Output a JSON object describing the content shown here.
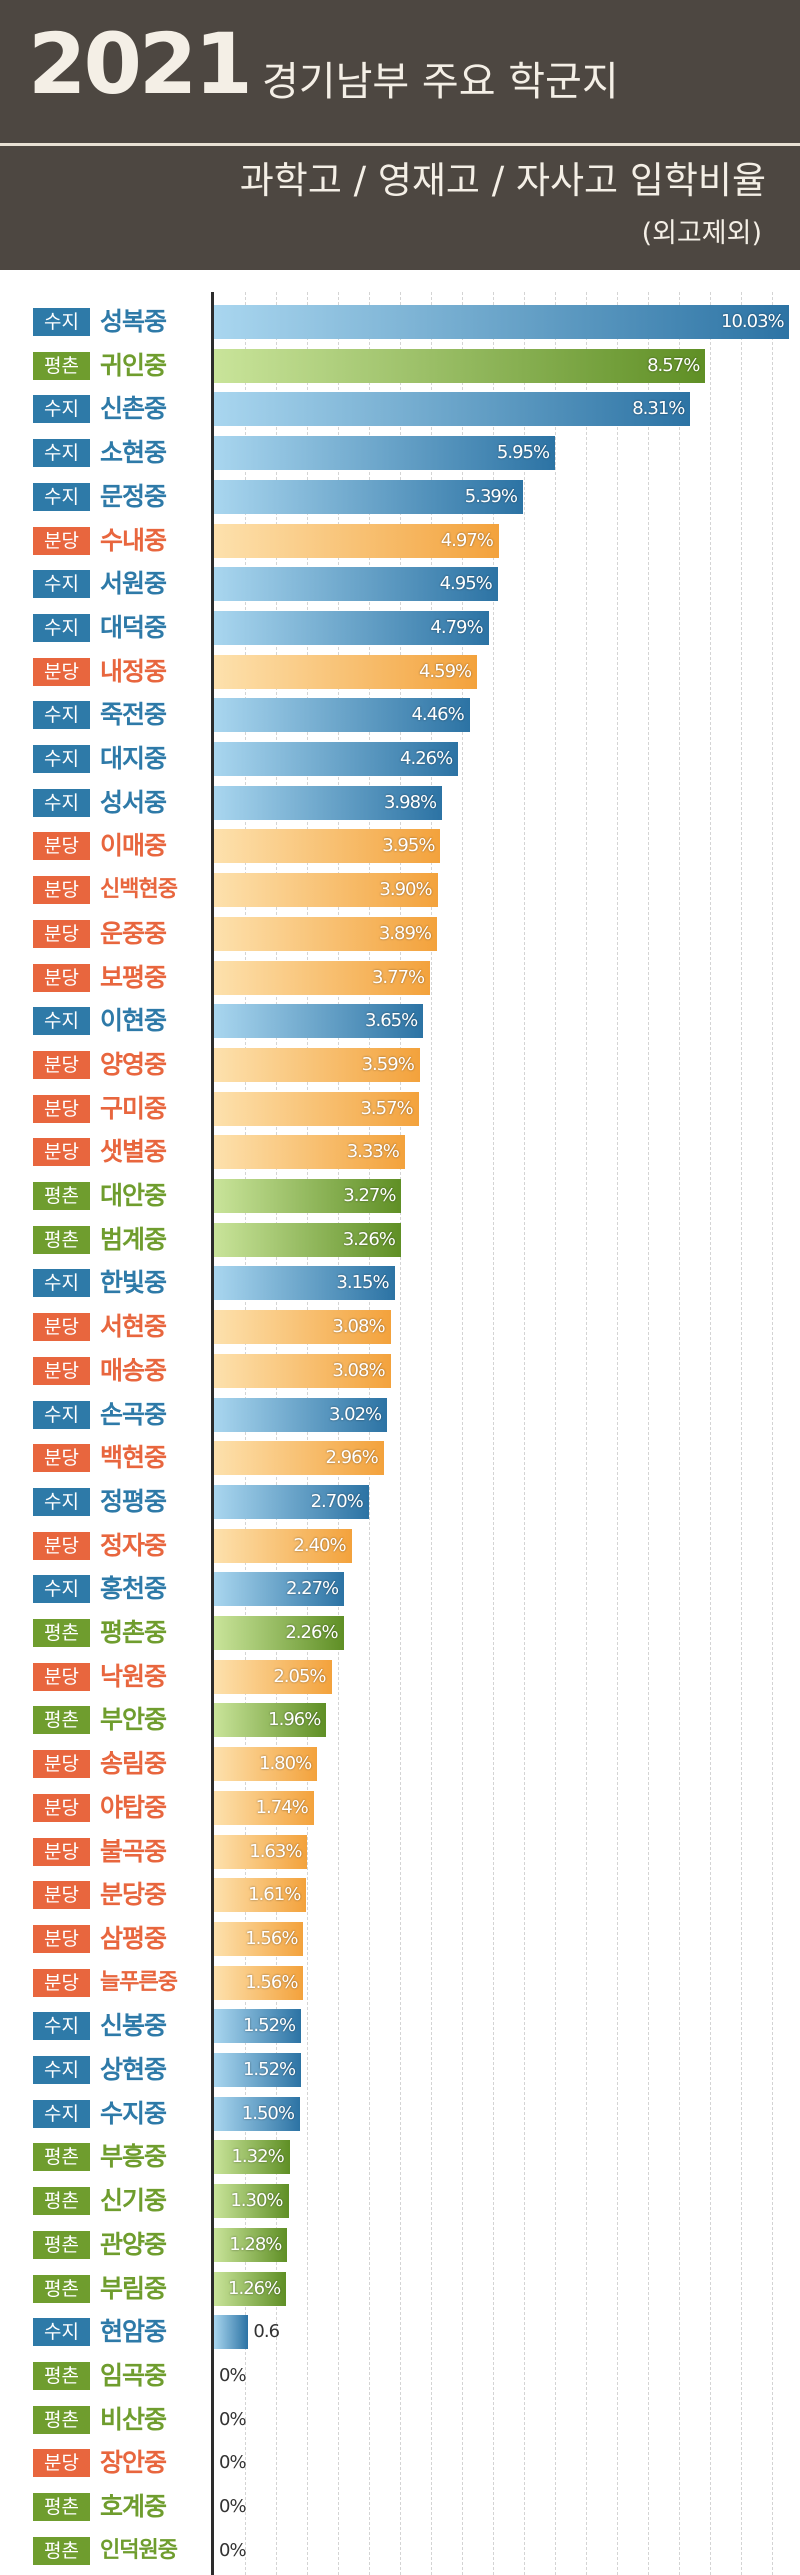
{
  "header": {
    "year": "2021",
    "title": "경기남부 주요 학군지",
    "subtitle": "과학고 / 영재고 / 자사고 입학비율",
    "note": "(외고제외)"
  },
  "colors": {
    "header_bg": "#4d4741",
    "수지": "#2e7aa8",
    "평촌": "#6f9d2e",
    "분당": "#e8663e",
    "bar_수지": [
      "#a9d6ef",
      "#2c73a4"
    ],
    "bar_평촌": [
      "#c9e49a",
      "#5f8f25"
    ],
    "bar_분당": [
      "#fde1ad",
      "#f3a23c"
    ]
  },
  "chart_data": {
    "type": "bar",
    "orientation": "horizontal",
    "grid": true,
    "xlim": [
      0,
      10.03
    ],
    "categories": [
      "성복중",
      "귀인중",
      "신촌중",
      "소현중",
      "문정중",
      "수내중",
      "서원중",
      "대덕중",
      "내정중",
      "죽전중",
      "대지중",
      "성서중",
      "이매중",
      "신백현중",
      "운중중",
      "보평중",
      "이현중",
      "양영중",
      "구미중",
      "샛별중",
      "대안중",
      "범계중",
      "한빛중",
      "서현중",
      "매송중",
      "손곡중",
      "백현중",
      "정평중",
      "정자중",
      "홍천중",
      "평촌중",
      "낙원중",
      "부안중",
      "송림중",
      "야탑중",
      "불곡중",
      "분당중",
      "삼평중",
      "늘푸른중",
      "신봉중",
      "상현중",
      "수지중",
      "부흥중",
      "신기중",
      "관양중",
      "부림중",
      "현암중",
      "임곡중",
      "비산중",
      "장안중",
      "호계중",
      "인덕원중"
    ],
    "regions": [
      "수지",
      "평촌",
      "수지",
      "수지",
      "수지",
      "분당",
      "수지",
      "수지",
      "분당",
      "수지",
      "수지",
      "수지",
      "분당",
      "분당",
      "분당",
      "분당",
      "수지",
      "분당",
      "분당",
      "분당",
      "평촌",
      "평촌",
      "수지",
      "분당",
      "분당",
      "수지",
      "분당",
      "수지",
      "분당",
      "수지",
      "평촌",
      "분당",
      "평촌",
      "분당",
      "분당",
      "분당",
      "분당",
      "분당",
      "분당",
      "수지",
      "수지",
      "수지",
      "평촌",
      "평촌",
      "평촌",
      "평촌",
      "수지",
      "평촌",
      "평촌",
      "분당",
      "평촌",
      "평촌"
    ],
    "values": [
      10.03,
      8.57,
      8.31,
      5.95,
      5.39,
      4.97,
      4.95,
      4.79,
      4.59,
      4.46,
      4.26,
      3.98,
      3.95,
      3.9,
      3.89,
      3.77,
      3.65,
      3.59,
      3.57,
      3.33,
      3.27,
      3.26,
      3.15,
      3.08,
      3.08,
      3.02,
      2.96,
      2.7,
      2.4,
      2.27,
      2.26,
      2.05,
      1.96,
      1.8,
      1.74,
      1.63,
      1.61,
      1.56,
      1.56,
      1.52,
      1.52,
      1.5,
      1.32,
      1.3,
      1.28,
      1.26,
      0.6,
      0,
      0,
      0,
      0,
      0
    ],
    "value_labels": [
      "10.03%",
      "8.57%",
      "8.31%",
      "5.95%",
      "5.39%",
      "4.97%",
      "4.95%",
      "4.79%",
      "4.59%",
      "4.46%",
      "4.26%",
      "3.98%",
      "3.95%",
      "3.90%",
      "3.89%",
      "3.77%",
      "3.65%",
      "3.59%",
      "3.57%",
      "3.33%",
      "3.27%",
      "3.26%",
      "3.15%",
      "3.08%",
      "3.08%",
      "3.02%",
      "2.96%",
      "2.70%",
      "2.40%",
      "2.27%",
      "2.26%",
      "2.05%",
      "1.96%",
      "1.80%",
      "1.74%",
      "1.63%",
      "1.61%",
      "1.56%",
      "1.56%",
      "1.52%",
      "1.52%",
      "1.50%",
      "1.32%",
      "1.30%",
      "1.28%",
      "1.26%",
      "0.6",
      "0%",
      "0%",
      "0%",
      "0%",
      "0%"
    ]
  }
}
